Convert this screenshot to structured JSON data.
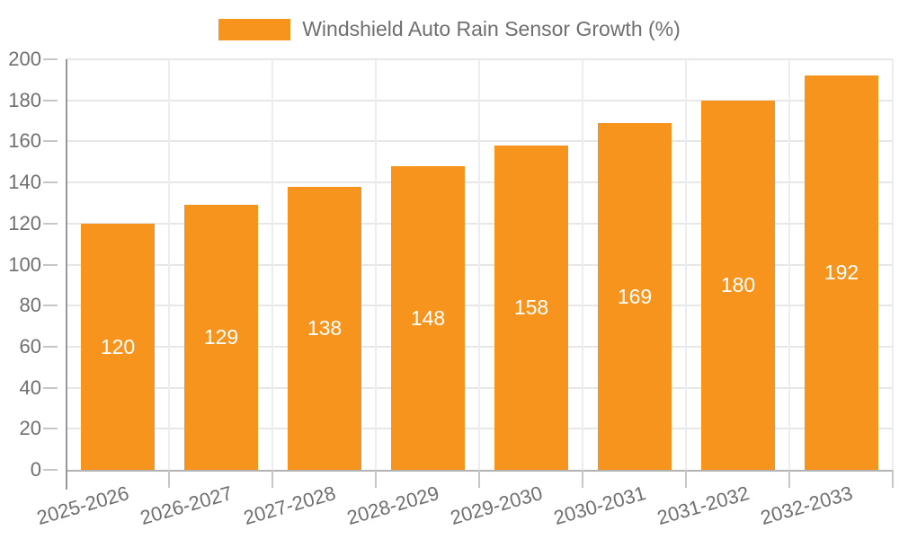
{
  "legend": {
    "label": "Windshield Auto Rain Sensor Growth (%)"
  },
  "chart_data": {
    "type": "bar",
    "title": "Windshield Auto Rain Sensor Growth (%)",
    "series_name": "Windshield Auto Rain Sensor Growth (%)",
    "categories": [
      "2025-2026",
      "2026-2027",
      "2027-2028",
      "2028-2029",
      "2029-2030",
      "2030-2031",
      "2031-2032",
      "2032-2033"
    ],
    "values": [
      120,
      129,
      138,
      148,
      158,
      169,
      180,
      192
    ],
    "xlabel": "",
    "ylabel": "",
    "ylim": [
      0,
      200
    ],
    "y_tick_step": 20,
    "y_tick_labels": [
      "0",
      "20",
      "40",
      "60",
      "80",
      "100",
      "120",
      "140",
      "160",
      "180",
      "200"
    ],
    "grid": true,
    "legend_position": "top",
    "x_tick_rotation_deg": -16,
    "bar_color": "#f7941e",
    "bar_label_color": "#ffffff"
  },
  "colors": {
    "bar": "#f7941e",
    "bar_label": "#ffffff",
    "text": "#6f6f6f",
    "axis_line": "#979797",
    "baseline": "#b3b3b3",
    "tick": "#c6c6c6",
    "gridline_h": "#e7e7e7",
    "gridline_v": "#ededed",
    "background": "#ffffff"
  }
}
